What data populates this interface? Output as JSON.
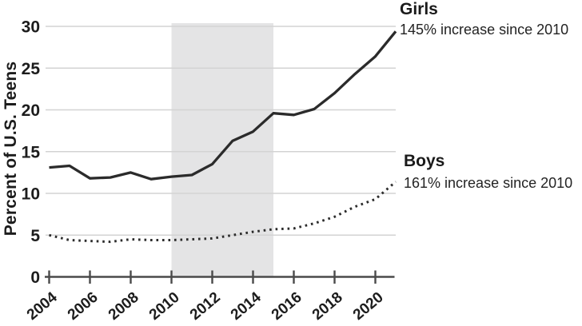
{
  "figure": {
    "y_axis_title": "Percent of U.S. Teens"
  },
  "annotations": {
    "girls": {
      "title": "Girls",
      "subtitle": "145% increase since 2010"
    },
    "boys": {
      "title": "Boys",
      "subtitle": "161% increase since 2010"
    }
  },
  "chart_data": {
    "type": "line",
    "title": "",
    "xlabel": "",
    "ylabel": "Percent of U.S. Teens",
    "x": [
      2004,
      2005,
      2006,
      2007,
      2008,
      2009,
      2010,
      2011,
      2012,
      2013,
      2014,
      2015,
      2016,
      2017,
      2018,
      2019,
      2020,
      2021
    ],
    "series": [
      {
        "name": "Girls",
        "line_style": "solid",
        "color": "#2b2b2b",
        "annotation": "145% increase since 2010",
        "values": [
          13.1,
          13.3,
          11.8,
          11.9,
          12.5,
          11.7,
          12.0,
          12.2,
          13.5,
          16.3,
          17.4,
          19.6,
          19.4,
          20.1,
          22.0,
          24.3,
          26.4,
          29.4
        ]
      },
      {
        "name": "Boys",
        "line_style": "dotted",
        "color": "#2b2b2b",
        "annotation": "161% increase since 2010",
        "values": [
          5.0,
          4.4,
          4.3,
          4.2,
          4.5,
          4.4,
          4.4,
          4.5,
          4.6,
          5.0,
          5.4,
          5.7,
          5.8,
          6.4,
          7.2,
          8.4,
          9.3,
          11.4
        ]
      }
    ],
    "x_ticks": [
      2004,
      2006,
      2008,
      2010,
      2012,
      2014,
      2016,
      2018,
      2020
    ],
    "y_ticks": [
      0,
      5,
      10,
      15,
      20,
      25,
      30
    ],
    "xlim": [
      2004,
      2021
    ],
    "ylim": [
      0,
      30
    ],
    "grid": true,
    "legend_position": "right-annotations",
    "shaded_region": {
      "from_x": 2010,
      "to_x": 2015
    },
    "colors": {
      "line": "#2b2b2b",
      "grid": "#d3d3d3",
      "axis": "#4a4a4a",
      "shading": "#e4e4e5",
      "text": "#1c1c1c"
    }
  }
}
